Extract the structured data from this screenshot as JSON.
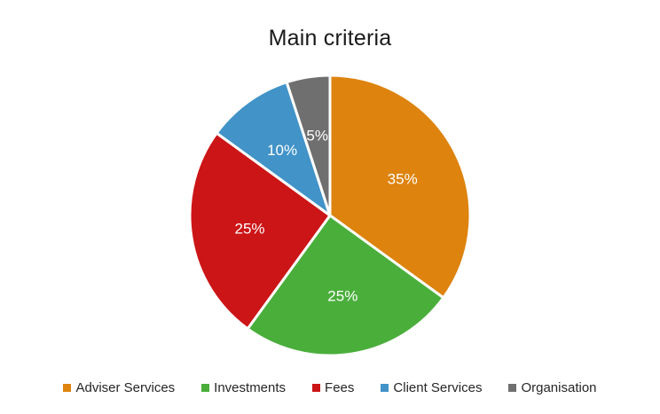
{
  "chart_data": {
    "type": "pie",
    "title": "Main criteria",
    "categories": [
      "Adviser Services",
      "Investments",
      "Fees",
      "Client Services",
      "Organisation"
    ],
    "values": [
      35,
      25,
      25,
      10,
      5
    ],
    "data_labels": [
      "35%",
      "25%",
      "25%",
      "10%",
      "5%"
    ],
    "colors": [
      "#DD830E",
      "#4AAE3B",
      "#CC1517",
      "#4193C8",
      "#6F6F6F"
    ],
    "start_angle_deg": 0,
    "direction": "clockwise",
    "label_color": "#ffffff",
    "separator_color": "#ffffff",
    "legend_position": "bottom",
    "background": "#ffffff"
  }
}
